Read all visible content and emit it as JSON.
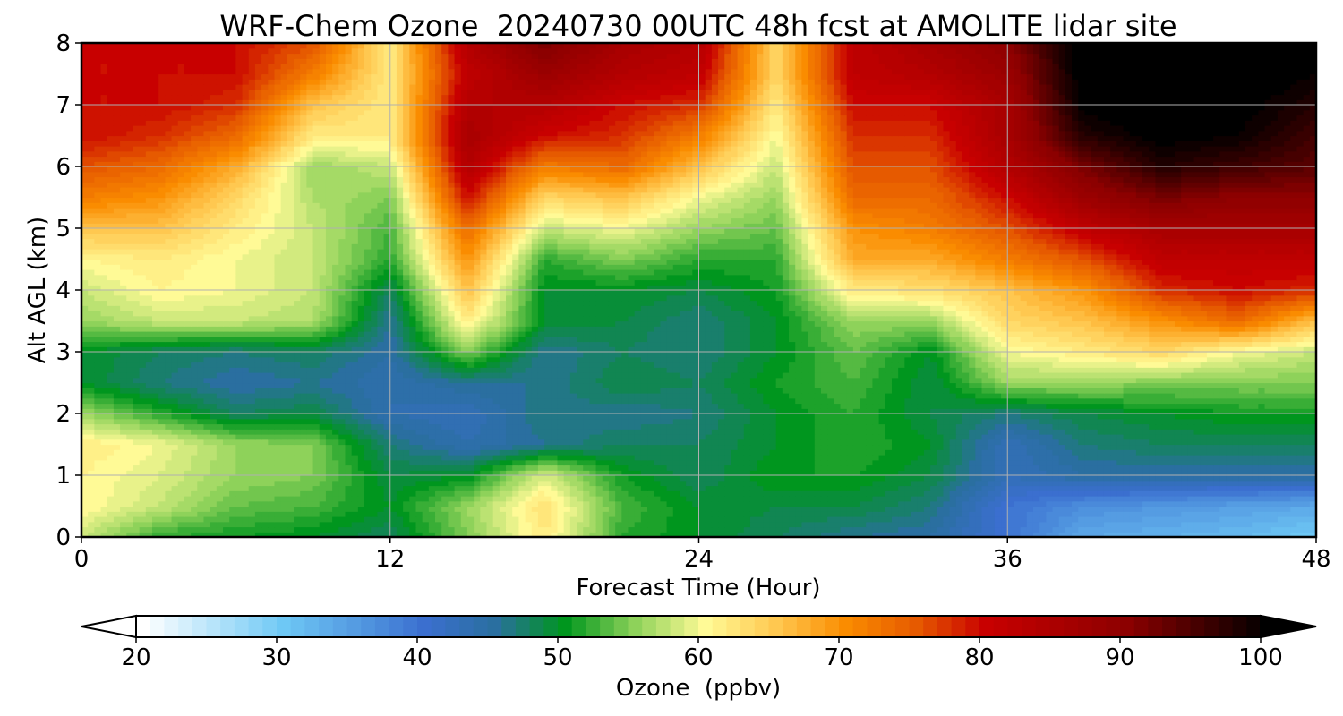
{
  "chart_data": {
    "type": "heatmap",
    "title": "WRF-Chem Ozone  20240730 00UTC 48h fcst at AMOLITE lidar site",
    "xlabel": "Forecast Time (Hour)",
    "ylabel": "Alt AGL (km)",
    "xlim": [
      0,
      48
    ],
    "ylim": [
      0,
      8
    ],
    "xticks": [
      0,
      12,
      24,
      36,
      48
    ],
    "yticks": [
      0,
      1,
      2,
      3,
      4,
      5,
      6,
      7,
      8
    ],
    "grid": true,
    "x": [
      0,
      3,
      6,
      9,
      12,
      15,
      18,
      21,
      24,
      27,
      30,
      33,
      36,
      39,
      42,
      45,
      48
    ],
    "y": [
      0,
      0.5,
      1,
      1.5,
      2,
      2.5,
      3,
      3.5,
      4,
      4.5,
      5,
      5.5,
      6,
      6.5,
      7,
      7.5,
      8
    ],
    "z": [
      [
        58,
        52,
        51,
        50,
        48,
        55,
        62,
        52,
        50,
        48,
        46,
        45,
        40,
        34,
        33,
        32,
        30
      ],
      [
        61,
        58,
        54,
        53,
        50,
        56,
        63,
        53,
        50,
        49,
        49,
        47,
        40,
        37,
        36,
        35,
        34
      ],
      [
        61,
        59,
        56,
        55,
        49,
        50,
        59,
        51,
        48,
        51,
        51,
        49,
        43,
        45,
        45,
        45,
        45
      ],
      [
        62,
        60,
        56,
        55,
        47,
        44,
        46,
        48,
        48,
        50,
        52,
        50,
        43,
        47,
        48,
        48,
        48
      ],
      [
        56,
        52,
        48,
        49,
        44,
        43,
        47,
        46,
        47,
        50,
        52,
        49,
        47,
        49,
        50,
        51,
        51
      ],
      [
        50,
        47,
        45,
        46,
        44,
        46,
        46,
        49,
        48,
        51,
        53,
        49,
        56,
        56,
        55,
        55,
        55
      ],
      [
        50,
        48,
        47,
        48,
        45,
        55,
        46,
        48,
        47,
        50,
        54,
        50,
        60,
        62,
        64,
        60,
        58
      ],
      [
        56,
        58,
        58,
        57,
        46,
        62,
        50,
        49,
        47,
        50,
        56,
        56,
        64,
        66,
        70,
        74,
        66
      ],
      [
        58,
        61,
        60,
        58,
        48,
        66,
        50,
        50,
        49,
        51,
        62,
        63,
        66,
        70,
        78,
        80,
        78
      ],
      [
        61,
        62,
        60,
        58,
        52,
        70,
        52,
        55,
        52,
        52,
        68,
        68,
        72,
        76,
        82,
        82,
        82
      ],
      [
        66,
        66,
        62,
        58,
        53,
        74,
        58,
        60,
        56,
        54,
        70,
        72,
        76,
        82,
        86,
        86,
        86
      ],
      [
        72,
        70,
        64,
        57,
        55,
        80,
        64,
        66,
        60,
        56,
        74,
        74,
        80,
        88,
        92,
        90,
        90
      ],
      [
        76,
        74,
        68,
        56,
        58,
        84,
        72,
        74,
        66,
        58,
        76,
        76,
        84,
        92,
        98,
        96,
        94
      ],
      [
        80,
        78,
        74,
        62,
        62,
        86,
        80,
        78,
        72,
        60,
        78,
        78,
        86,
        98,
        101,
        100,
        96
      ],
      [
        80,
        80,
        78,
        66,
        62,
        84,
        84,
        80,
        78,
        62,
        80,
        80,
        86,
        101,
        102,
        101,
        98
      ],
      [
        80,
        80,
        80,
        72,
        62,
        82,
        88,
        84,
        82,
        64,
        82,
        84,
        88,
        102,
        102,
        102,
        100
      ],
      [
        80,
        80,
        80,
        76,
        62,
        84,
        92,
        86,
        84,
        64,
        82,
        86,
        90,
        102,
        102,
        102,
        102
      ]
    ],
    "colorbar": {
      "label": "Ozone  (ppbv)",
      "min": 20,
      "max": 100,
      "ticks": [
        20,
        30,
        40,
        50,
        60,
        70,
        80,
        90,
        100
      ],
      "extend": "both",
      "stops": [
        {
          "v": 20,
          "c": "#ffffff"
        },
        {
          "v": 30,
          "c": "#6ec8f5"
        },
        {
          "v": 40,
          "c": "#3b6fcf"
        },
        {
          "v": 45,
          "c": "#2a6fa0"
        },
        {
          "v": 50,
          "c": "#00961e"
        },
        {
          "v": 55,
          "c": "#8ed25a"
        },
        {
          "v": 60,
          "c": "#fffa96"
        },
        {
          "v": 65,
          "c": "#ffc850"
        },
        {
          "v": 70,
          "c": "#fa8c00"
        },
        {
          "v": 75,
          "c": "#e65a00"
        },
        {
          "v": 80,
          "c": "#c80000"
        },
        {
          "v": 90,
          "c": "#8c0000"
        },
        {
          "v": 100,
          "c": "#000000"
        }
      ]
    }
  }
}
